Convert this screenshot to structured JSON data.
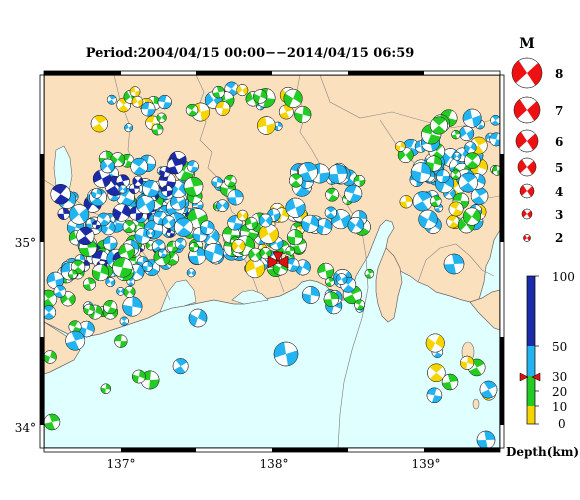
{
  "title": "Period:2004/04/15 00:00−−2014/04/15 06:59",
  "axes": {
    "lon_ticks": [
      "137°",
      "138°",
      "139°"
    ],
    "lat_ticks": [
      "35°",
      "34°"
    ]
  },
  "magnitude_legend": {
    "heading": "M",
    "items": [
      "8",
      "7",
      "6",
      "5",
      "4",
      "3",
      "2"
    ]
  },
  "depth_legend": {
    "ticks": [
      "100",
      "50",
      "30",
      "20",
      "10",
      "0"
    ],
    "label": "Depth(km)"
  },
  "colors": {
    "land": "#fbe0bd",
    "sea": "#e0ffff",
    "depth_0_10": "#f5d400",
    "depth_10_20": "#22cc22",
    "depth_20_30": "#22cc22",
    "depth_30_50": "#22b4f0",
    "depth_50_100": "#1a2aa8",
    "mag_legend": "#ee1111"
  }
}
